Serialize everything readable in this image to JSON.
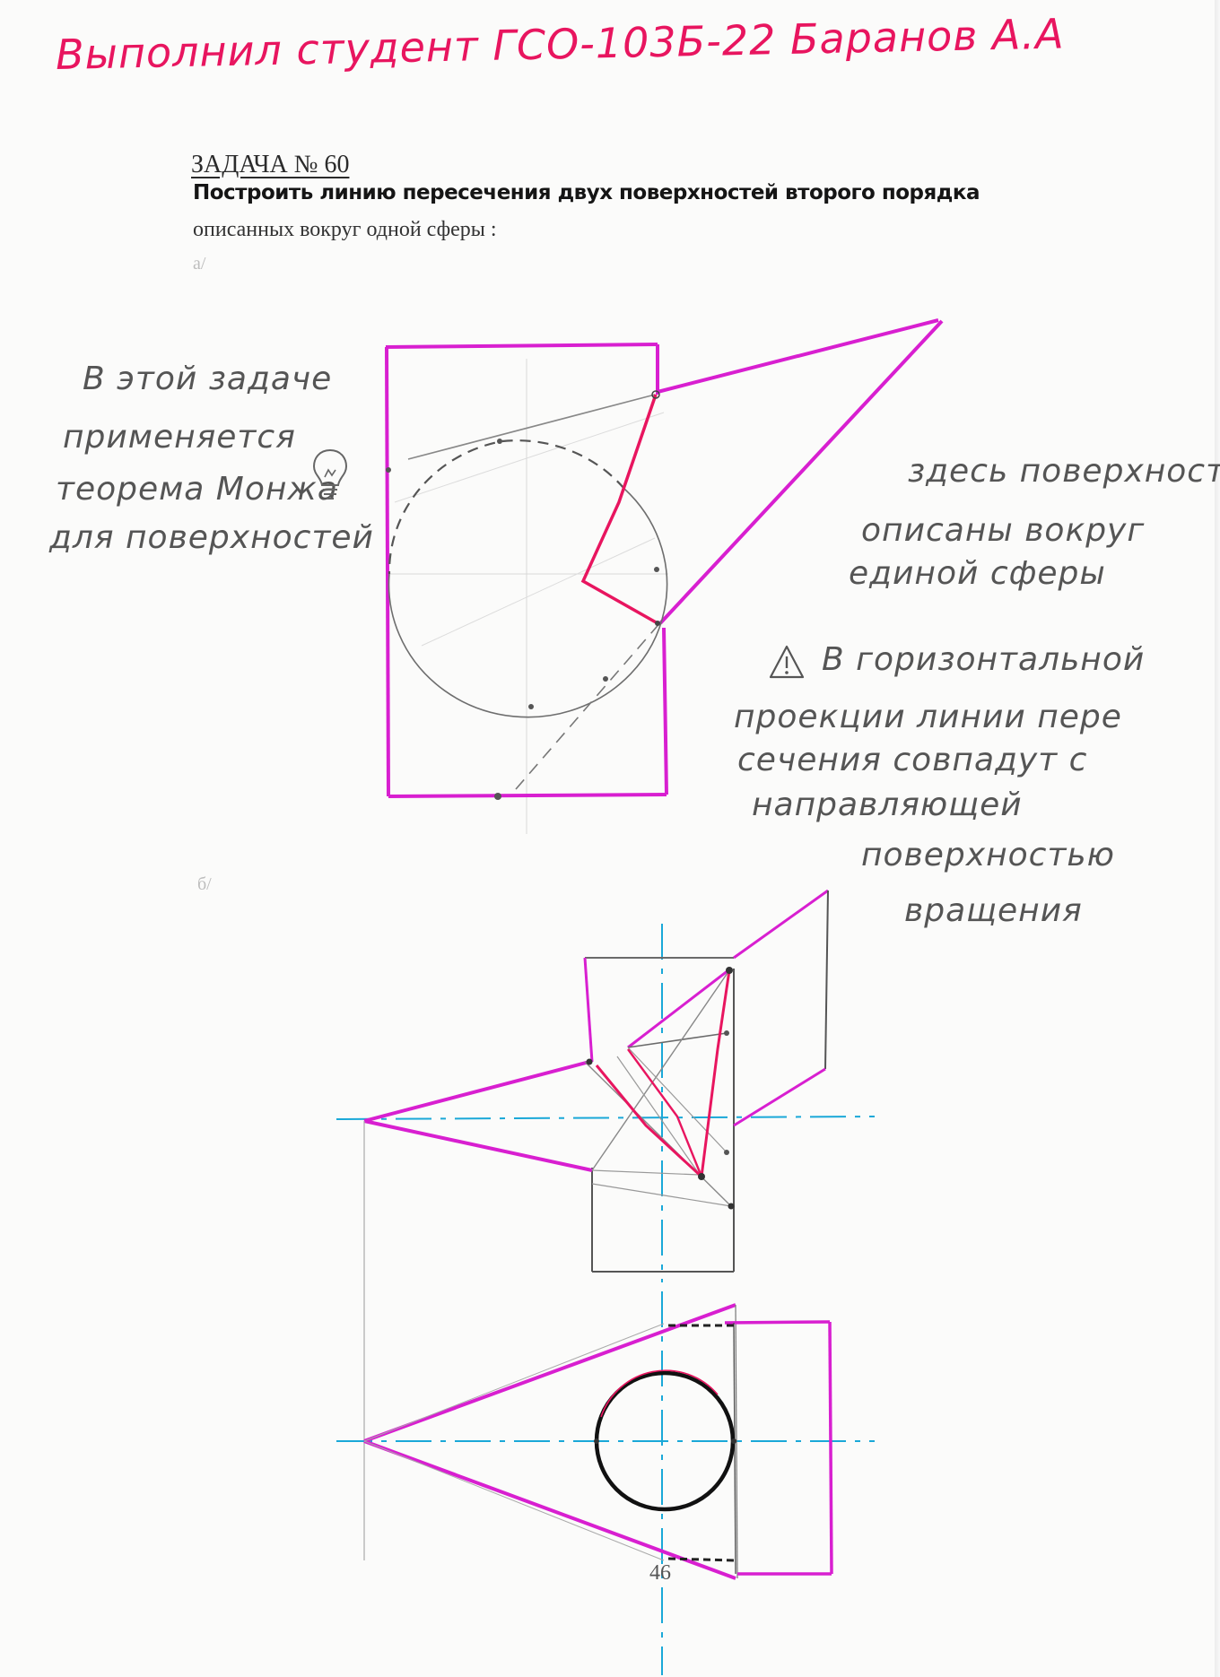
{
  "header": {
    "student_line": "Выполнил студент ГСО-103Б-22 Баранов А.А"
  },
  "task": {
    "number": "ЗАДАЧА № 60",
    "statement_bold": "Построить линию пересечения двух поверхностей второго порядка",
    "statement_rest": "описанных вокруг одной сферы :",
    "part_a": "а/",
    "part_b": "б/"
  },
  "notes": {
    "left_note": [
      "В этой задаче",
      "применяется",
      "теорема Монжа",
      "для поверхностей"
    ],
    "right_note": [
      "здесь поверхности",
      "описаны вокруг",
      "единой сферы"
    ],
    "warning_note": [
      "В горизонтальной",
      "проекции линии пере",
      "сечения совпадут с",
      "направляющей",
      "поверхностью",
      "вращения"
    ]
  },
  "icons": {
    "bulb": "lightbulb-icon",
    "warning": "warning-triangle-icon"
  },
  "colors": {
    "magenta": "#d81fd0",
    "red": "#e8155f",
    "cyan": "#1aa8d8",
    "pencil": "#777777"
  },
  "footer": {
    "page_number": "46"
  }
}
